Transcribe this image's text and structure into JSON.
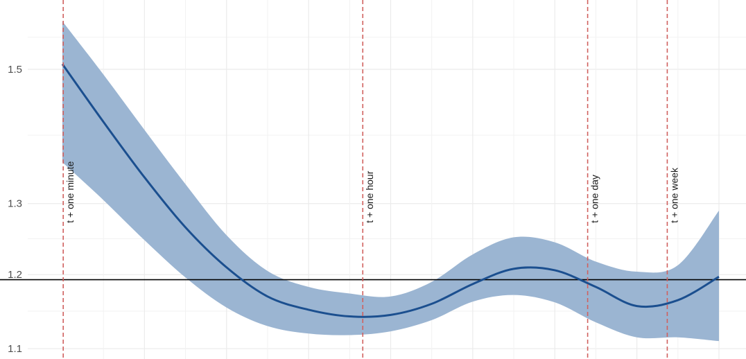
{
  "chart_data": {
    "type": "line",
    "title": "",
    "xlabel": "",
    "ylabel": "",
    "xlim": [
      0,
      8
    ],
    "ylim": [
      1.09,
      1.6
    ],
    "grid": true,
    "y_axis_type": "sqrt",
    "y_ticks": [
      1.1,
      1.2,
      1.3,
      1.5
    ],
    "y_tick_labels": [
      "1.1",
      "1.2",
      "1.3",
      "1.5"
    ],
    "x_major_grid": [
      1,
      2,
      3,
      4,
      5,
      6,
      7,
      8
    ],
    "series": [
      {
        "x": [
          0,
          0.5,
          1,
          1.5,
          2,
          2.5,
          3,
          3.5,
          4,
          4.5,
          5,
          5.5,
          6,
          6.5,
          7,
          7.5,
          8
        ],
        "values": [
          1.508,
          1.42,
          1.338,
          1.266,
          1.21,
          1.17,
          1.152,
          1.143,
          1.145,
          1.16,
          1.187,
          1.208,
          1.206,
          1.183,
          1.157,
          1.165,
          1.197
        ],
        "lower": [
          1.36,
          1.305,
          1.248,
          1.196,
          1.155,
          1.13,
          1.12,
          1.118,
          1.123,
          1.138,
          1.163,
          1.172,
          1.162,
          1.135,
          1.115,
          1.115,
          1.11
        ],
        "upper": [
          1.575,
          1.492,
          1.408,
          1.328,
          1.255,
          1.205,
          1.183,
          1.174,
          1.17,
          1.19,
          1.228,
          1.252,
          1.245,
          1.218,
          1.204,
          1.213,
          1.29
        ],
        "color": "#1b4f8f",
        "band_color": "#9bb5d2"
      }
    ],
    "reference_line": {
      "y": 1.193,
      "color": "#000000"
    },
    "vlines": [
      {
        "x": 0.01,
        "label": "t + one minute",
        "color": "#d0605e"
      },
      {
        "x": 3.66,
        "label": "t + one hour",
        "color": "#d0605e"
      },
      {
        "x": 6.4,
        "label": "t + one day",
        "color": "#d0605e"
      },
      {
        "x": 7.37,
        "label": "t + one week",
        "color": "#d0605e"
      }
    ]
  }
}
